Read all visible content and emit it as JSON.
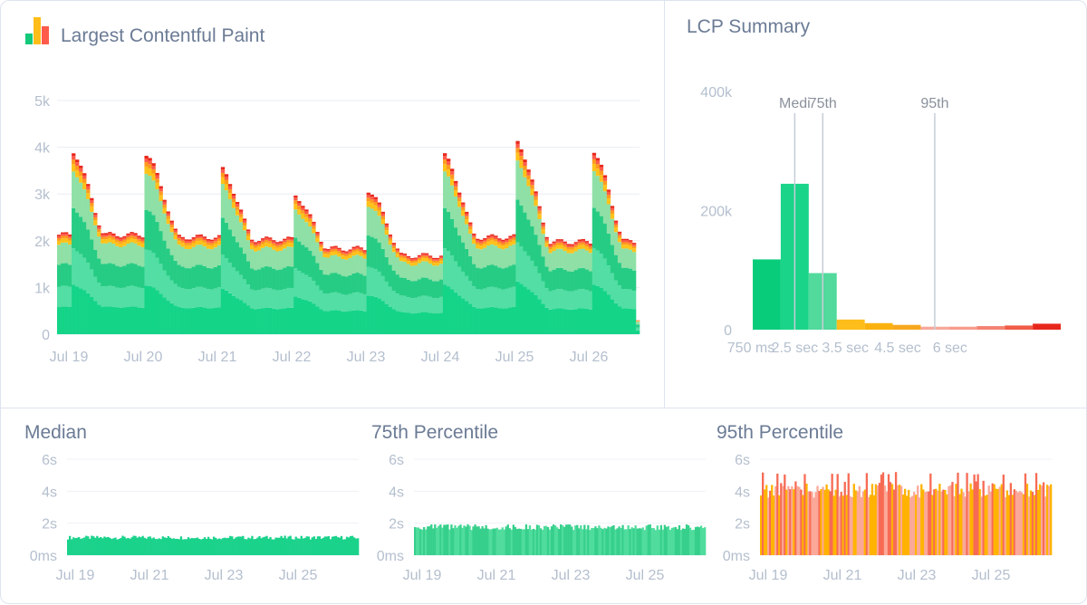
{
  "main_chart": {
    "title": "Largest Contentful Paint",
    "chart_data": {
      "type": "bar",
      "stacked": true,
      "ylim": [
        0,
        5000
      ],
      "y_ticks": [
        "0",
        "1k",
        "2k",
        "3k",
        "4k",
        "5k"
      ],
      "x_ticks": [
        "Jul 19",
        "Jul 20",
        "Jul 21",
        "Jul 22",
        "Jul 23",
        "Jul 24",
        "Jul 25",
        "Jul 26"
      ],
      "daily_peaks": [
        4050,
        3950,
        3650,
        3050,
        3150,
        3950,
        4200,
        4100
      ],
      "daily_troughs": [
        2150,
        2100,
        2050,
        1850,
        1700,
        2100,
        2000,
        2000
      ],
      "series_colors": [
        "#14d488",
        "#52dea4",
        "#27cc84",
        "#8fe0a6",
        "#ffc21a",
        "#ff9a1f",
        "#ff5b4a",
        "#e8271c"
      ],
      "grid": true
    }
  },
  "summary_chart": {
    "title": "LCP Summary",
    "chart_data": {
      "type": "bar",
      "y_ticks": [
        "0",
        "200k",
        "400k"
      ],
      "ylim": [
        0,
        400000
      ],
      "x_tick_labels": [
        "750 ms",
        "2.5 sec",
        "3.5 sec",
        "4.5 sec",
        "6 sec"
      ],
      "values": [
        118000,
        245000,
        95000,
        17000,
        11000,
        8000,
        5000,
        5000,
        6000,
        7000,
        10000
      ],
      "colors": [
        "#08cc7a",
        "#1ad48a",
        "#52d99c",
        "#fdbd1a",
        "#fbb20f",
        "#f7a81e",
        "#f6a89a",
        "#f79b8c",
        "#f48272",
        "#f15c46",
        "#e8271c"
      ],
      "markers": [
        {
          "label": "Medi",
          "at": 1.5
        },
        {
          "label": "75th",
          "at": 2.5
        },
        {
          "label": "95th",
          "at": 6.5
        }
      ]
    }
  },
  "small_charts": [
    {
      "title": "Median",
      "chart_data": {
        "type": "bar",
        "y_ticks": [
          "0ms",
          "2s",
          "4s",
          "6s"
        ],
        "ylim": [
          0,
          6
        ],
        "x_ticks": [
          "Jul 19",
          "Jul 21",
          "Jul 23",
          "Jul 25"
        ],
        "level": 1.1,
        "jitter": 0.12,
        "colors": [
          "#1bd28b"
        ]
      }
    },
    {
      "title": "75th Percentile",
      "chart_data": {
        "type": "bar",
        "y_ticks": [
          "0ms",
          "2s",
          "4s",
          "6s"
        ],
        "ylim": [
          0,
          6
        ],
        "x_ticks": [
          "Jul 19",
          "Jul 21",
          "Jul 23",
          "Jul 25"
        ],
        "level": 1.75,
        "jitter": 0.18,
        "colors": [
          "#4fdc9c",
          "#37cf8c"
        ]
      }
    },
    {
      "title": "95th Percentile",
      "chart_data": {
        "type": "bar",
        "y_ticks": [
          "0ms",
          "2s",
          "4s",
          "6s"
        ],
        "ylim": [
          0,
          6
        ],
        "x_ticks": [
          "Jul 19",
          "Jul 21",
          "Jul 23",
          "Jul 25"
        ],
        "level": 4.1,
        "jitter": 0.5,
        "colors": [
          "#fba898",
          "#ffb300",
          "#f76b55"
        ]
      }
    }
  ]
}
